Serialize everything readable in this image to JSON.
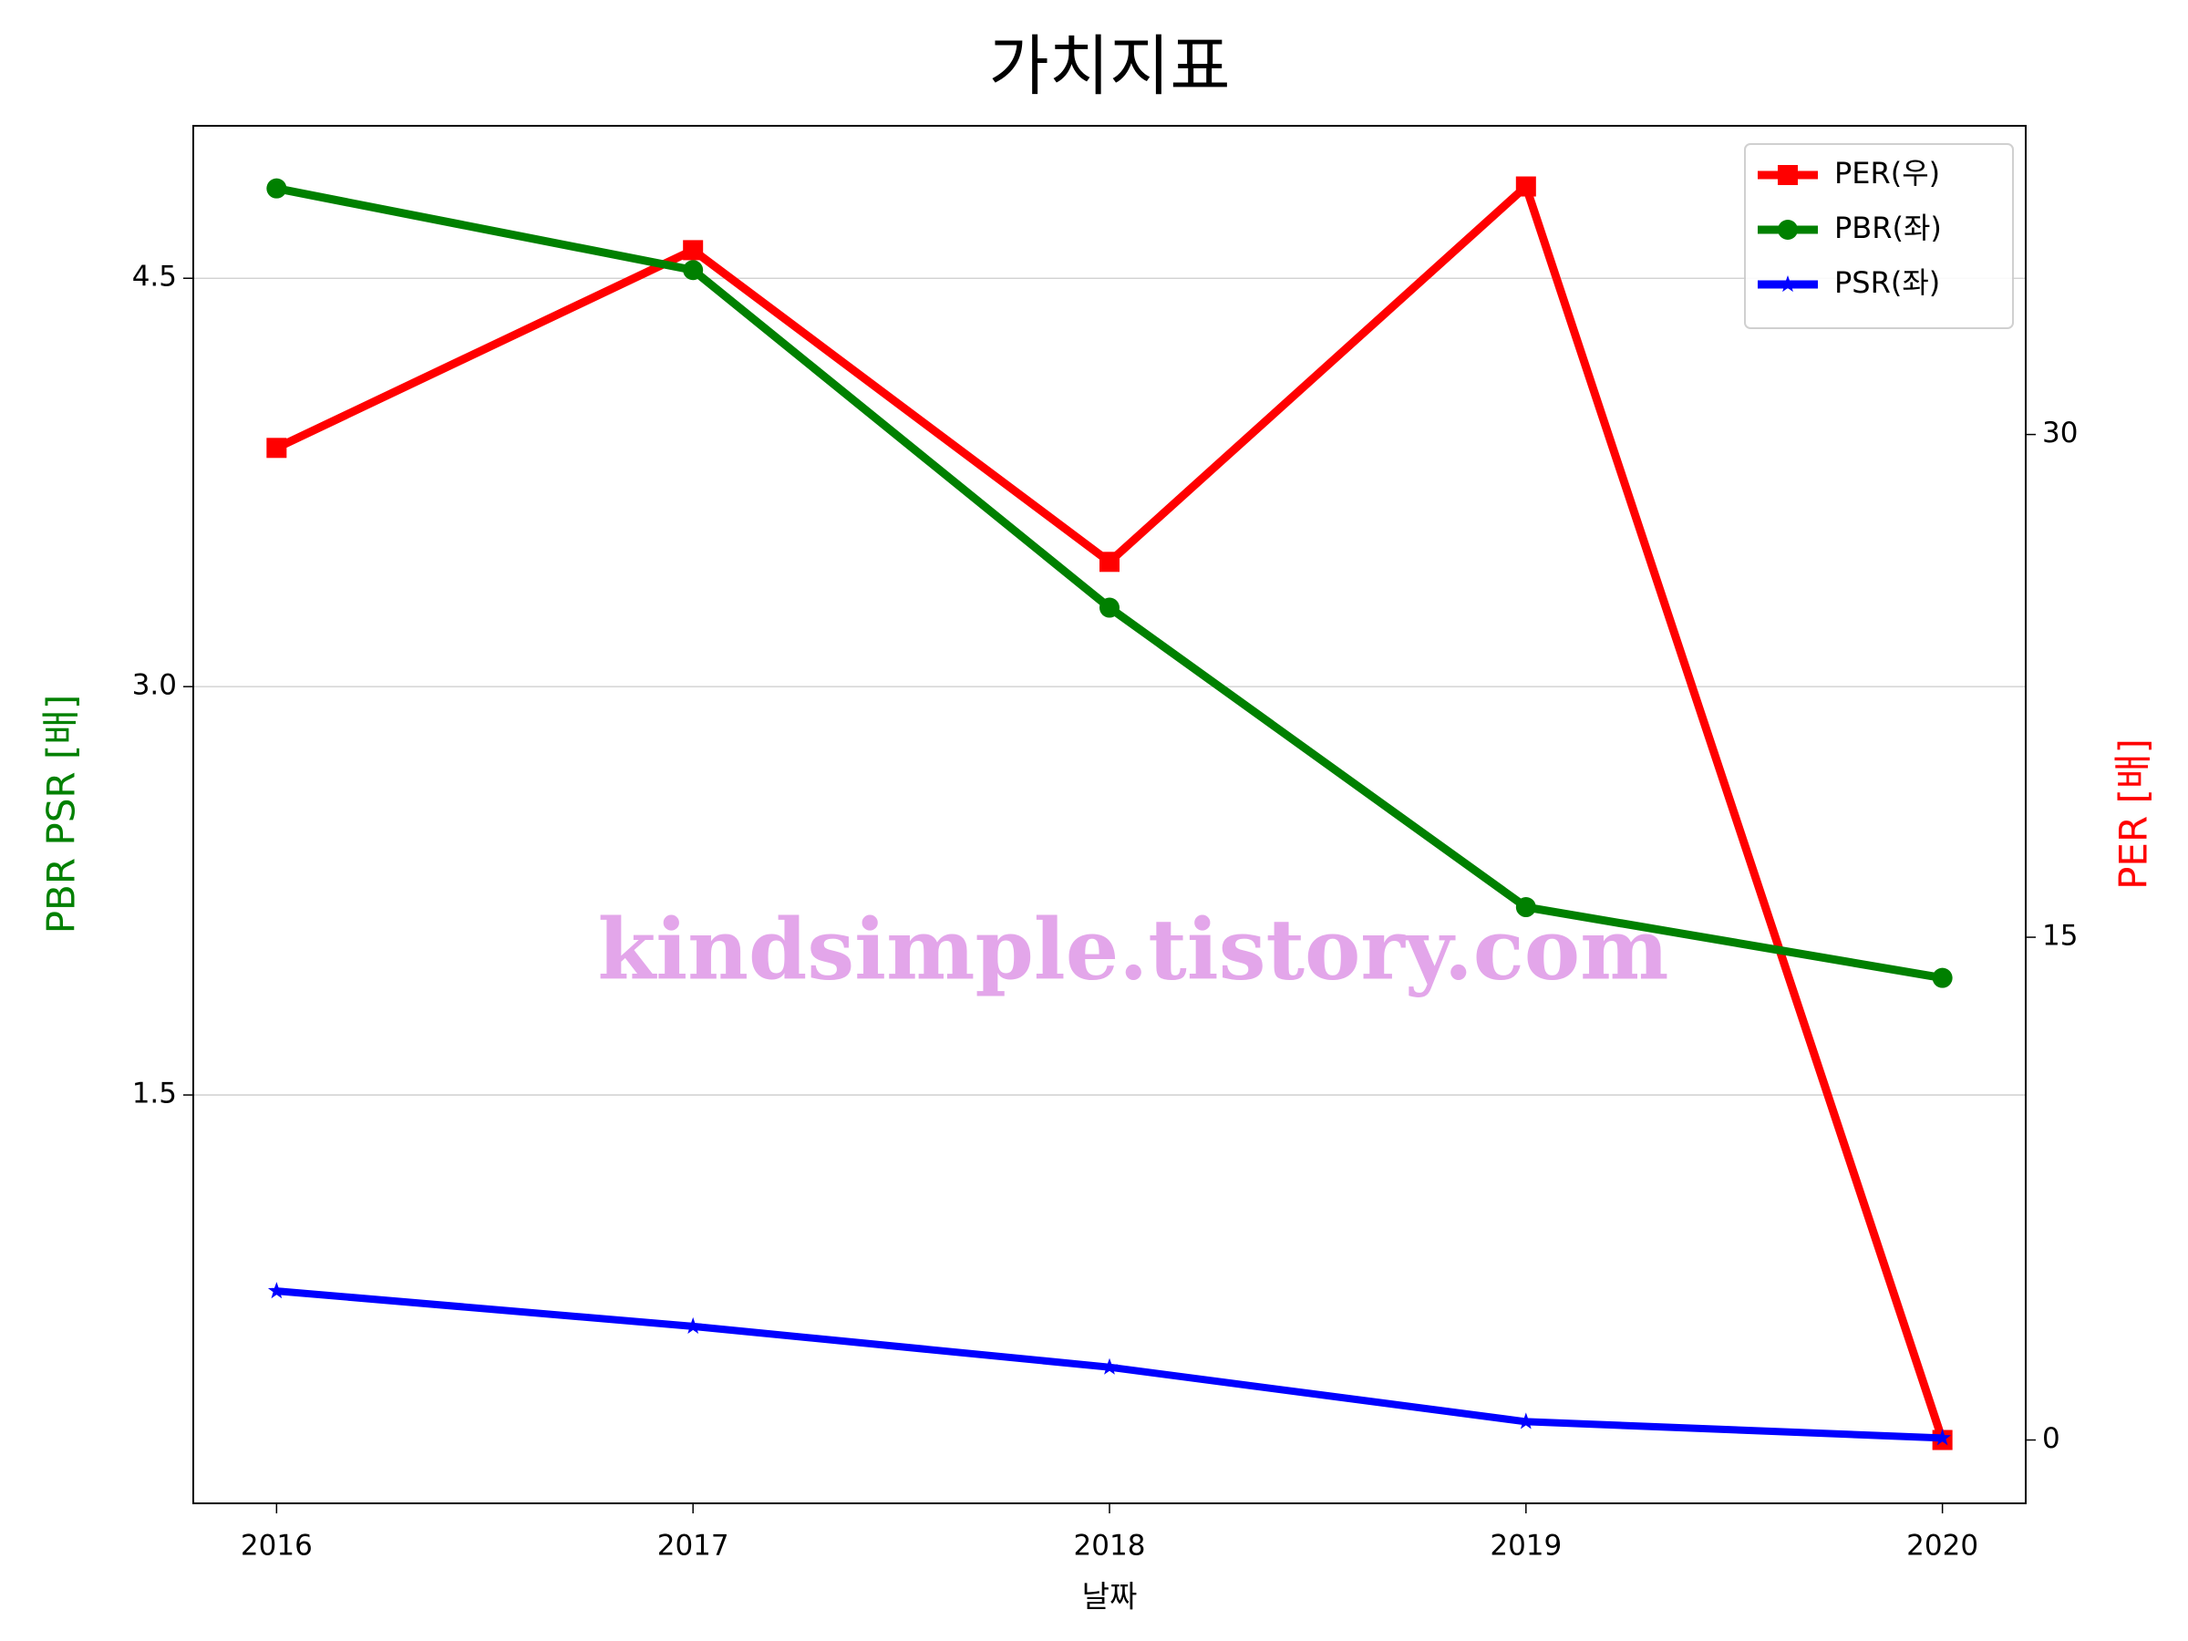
{
  "chart_data": {
    "type": "line",
    "title": "가치지표",
    "xlabel": "날짜",
    "ylabel": "PBR PSR [배]",
    "y2label": "PER [배]",
    "ylabel_color": "green",
    "y2label_color": "red",
    "watermark": "kindsimple.tistory.com",
    "x": [
      2016,
      2017,
      2018,
      2019,
      2020
    ],
    "xlim": [
      2015.8,
      2020.2
    ],
    "xticks": [
      2016,
      2017,
      2018,
      2019,
      2020
    ],
    "ylim": [
      0.0,
      5.06
    ],
    "yticks": [
      1.5,
      {
        "value": 3.0,
        "label": "3.0"
      },
      4.5
    ],
    "y2lim": [
      -1.89,
      39.21
    ],
    "y2ticks": [
      0,
      15,
      30
    ],
    "grid": true,
    "legend": "upper right",
    "series": [
      {
        "name": "PER(우)",
        "color": "red",
        "marker": "square",
        "axis": "y2",
        "values": [
          29.6,
          35.5,
          26.2,
          37.4,
          0
        ]
      },
      {
        "name": "PBR(좌)",
        "color": "green",
        "marker": "circle",
        "values": [
          4.83,
          4.53,
          3.29,
          2.19,
          1.93
        ]
      },
      {
        "name": "PSR(좌)",
        "color": "blue",
        "marker": "star",
        "values": [
          0.78,
          0.65,
          0.5,
          0.3,
          0.24
        ]
      }
    ]
  }
}
